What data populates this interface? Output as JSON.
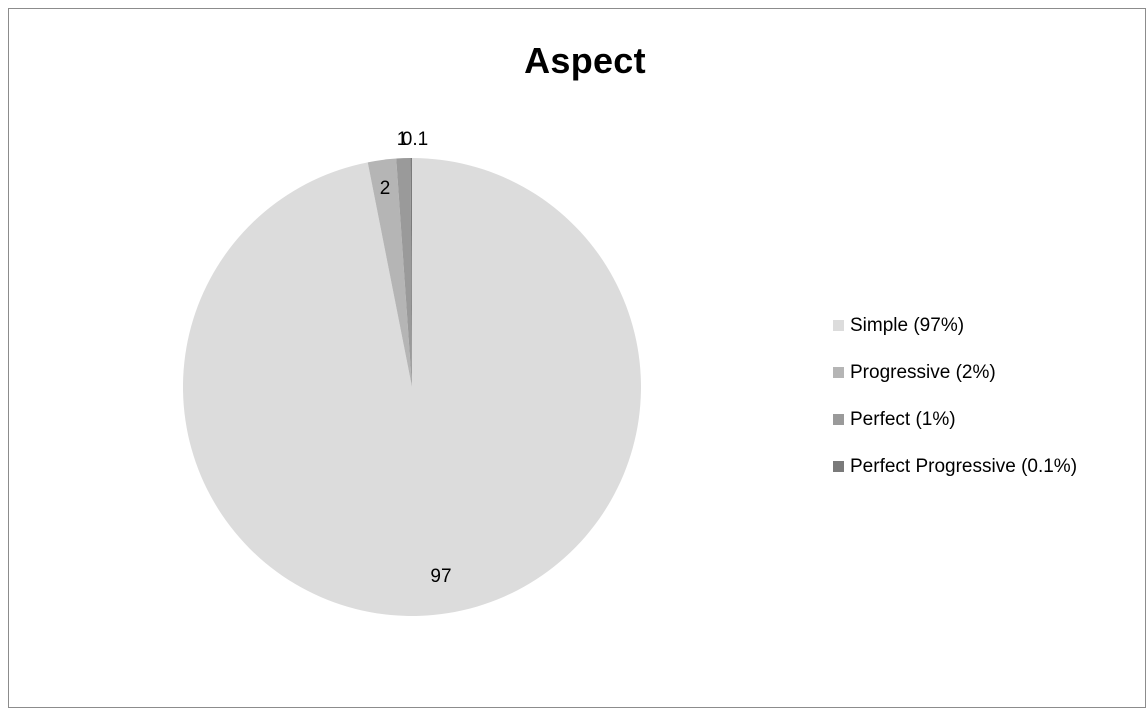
{
  "chart_data": {
    "type": "pie",
    "title": "Aspect",
    "start_angle": "12 o'clock",
    "direction": "clockwise",
    "categories": [
      "Simple",
      "Progressive",
      "Perfect",
      "Perfect Progressive"
    ],
    "values": [
      97,
      2,
      1,
      0.1
    ],
    "data_labels": [
      "97",
      "2",
      "1",
      "0.1"
    ],
    "legend": {
      "placement": "right",
      "entries": [
        "Simple (97%)",
        "Progressive (2%)",
        "Perfect (1%)",
        "Perfect Progressive (0.1%)"
      ]
    },
    "colors": [
      "#dcdcdc",
      "#b5b5b5",
      "#9a9a9a",
      "#7a7a7a"
    ]
  }
}
